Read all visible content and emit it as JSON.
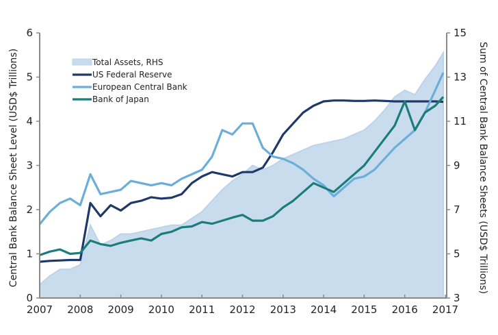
{
  "chart_data": {
    "type": "line",
    "title": "",
    "xlabel": "",
    "ylabel": "Central Bank Balance Sheet Level (USD$ Trillions)",
    "y2label": "Sum of Central Bank Balance Sheets (USD$ Trillions)",
    "xlim": [
      2007,
      2017
    ],
    "ylim": [
      0,
      6
    ],
    "y2lim": [
      3,
      15
    ],
    "x_ticks": [
      "2007",
      "2008",
      "2009",
      "2010",
      "2011",
      "2012",
      "2013",
      "2014",
      "2015",
      "2016",
      "2017"
    ],
    "y_ticks": [
      "0",
      "1",
      "2",
      "3",
      "4",
      "5",
      "6"
    ],
    "y2_ticks": [
      "3",
      "5",
      "7",
      "9",
      "11",
      "13",
      "15"
    ],
    "grid": false,
    "legend_position": "top-left",
    "x": [
      2007.0,
      2007.25,
      2007.5,
      2007.75,
      2008.0,
      2008.25,
      2008.5,
      2008.75,
      2009.0,
      2009.25,
      2009.5,
      2009.75,
      2010.0,
      2010.25,
      2010.5,
      2010.75,
      2011.0,
      2011.25,
      2011.5,
      2011.75,
      2012.0,
      2012.25,
      2012.5,
      2012.75,
      2013.0,
      2013.25,
      2013.5,
      2013.75,
      2014.0,
      2014.25,
      2014.5,
      2014.75,
      2015.0,
      2015.25,
      2015.5,
      2015.75,
      2016.0,
      2016.25,
      2016.5,
      2016.75,
      2016.95
    ],
    "series": [
      {
        "name": "Total Assets, RHS",
        "axis": "right",
        "kind": "area",
        "color": "#c9dcee",
        "values": [
          3.6,
          4.0,
          4.3,
          4.3,
          4.5,
          6.3,
          5.4,
          5.6,
          5.9,
          5.9,
          6.0,
          6.1,
          6.2,
          6.3,
          6.3,
          6.6,
          6.9,
          7.4,
          7.9,
          8.3,
          8.6,
          9.0,
          8.8,
          9.0,
          9.3,
          9.5,
          9.7,
          9.9,
          10.0,
          10.1,
          10.2,
          10.4,
          10.6,
          11.0,
          11.5,
          12.1,
          12.4,
          12.2,
          12.9,
          13.5,
          14.1
        ]
      },
      {
        "name": "US Federal Reserve",
        "axis": "left",
        "kind": "line",
        "color": "#1f3868",
        "values": [
          0.82,
          0.84,
          0.85,
          0.86,
          0.86,
          2.15,
          1.85,
          2.1,
          1.98,
          2.15,
          2.2,
          2.28,
          2.25,
          2.27,
          2.35,
          2.6,
          2.75,
          2.85,
          2.8,
          2.75,
          2.85,
          2.85,
          2.95,
          3.3,
          3.7,
          3.95,
          4.2,
          4.35,
          4.45,
          4.47,
          4.47,
          4.46,
          4.46,
          4.47,
          4.46,
          4.45,
          4.45,
          4.45,
          4.45,
          4.45,
          4.44
        ]
      },
      {
        "name": "European Central Bank",
        "axis": "left",
        "kind": "line",
        "color": "#6aaed9",
        "values": [
          1.67,
          1.95,
          2.15,
          2.25,
          2.1,
          2.8,
          2.35,
          2.4,
          2.45,
          2.65,
          2.6,
          2.55,
          2.6,
          2.55,
          2.7,
          2.8,
          2.9,
          3.2,
          3.8,
          3.7,
          3.95,
          3.95,
          3.4,
          3.2,
          3.15,
          3.05,
          2.9,
          2.7,
          2.55,
          2.3,
          2.5,
          2.7,
          2.75,
          2.9,
          3.15,
          3.4,
          3.6,
          3.8,
          4.2,
          4.7,
          5.1
        ]
      },
      {
        "name": "Bank of Japan",
        "axis": "left",
        "kind": "line",
        "color": "#1a7d7a",
        "values": [
          0.97,
          1.05,
          1.1,
          1.0,
          1.02,
          1.3,
          1.22,
          1.18,
          1.25,
          1.3,
          1.35,
          1.3,
          1.45,
          1.5,
          1.6,
          1.62,
          1.72,
          1.68,
          1.75,
          1.82,
          1.88,
          1.75,
          1.75,
          1.85,
          2.05,
          2.2,
          2.4,
          2.6,
          2.5,
          2.4,
          2.6,
          2.8,
          3.0,
          3.3,
          3.6,
          3.9,
          4.45,
          3.8,
          4.2,
          4.35,
          4.55
        ]
      }
    ]
  }
}
